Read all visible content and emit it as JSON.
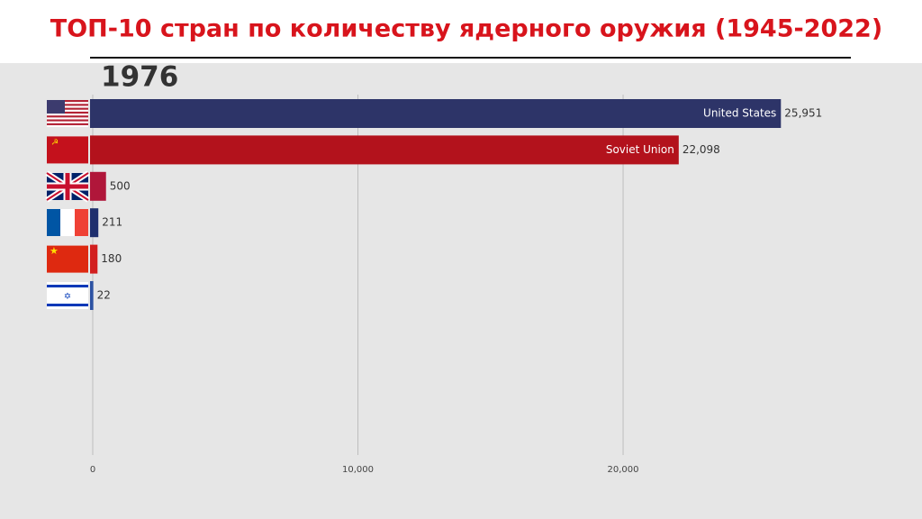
{
  "chart_data": {
    "type": "barh",
    "title": "ТОП-10 стран по количеству ядерного оружия (1945-2022)",
    "annotation": "1976",
    "categories": [
      "United States",
      "Soviet Union",
      null,
      null,
      null,
      null
    ],
    "values": [
      25951,
      22098,
      500,
      211,
      180,
      22
    ],
    "value_labels": [
      "25,951",
      "22,098",
      "500",
      "211",
      "180",
      "22"
    ],
    "colors": [
      "#2d3468",
      "#b3121c",
      "#b0163a",
      "#1f2f6e",
      "#d21f1f",
      "#2d52a3"
    ],
    "xlim": [
      0,
      31000
    ],
    "xticks": [
      0,
      {
        "value": 10000,
        "label": "10,000"
      },
      {
        "value": 20000,
        "label": "20,000"
      }
    ],
    "grid": true
  }
}
